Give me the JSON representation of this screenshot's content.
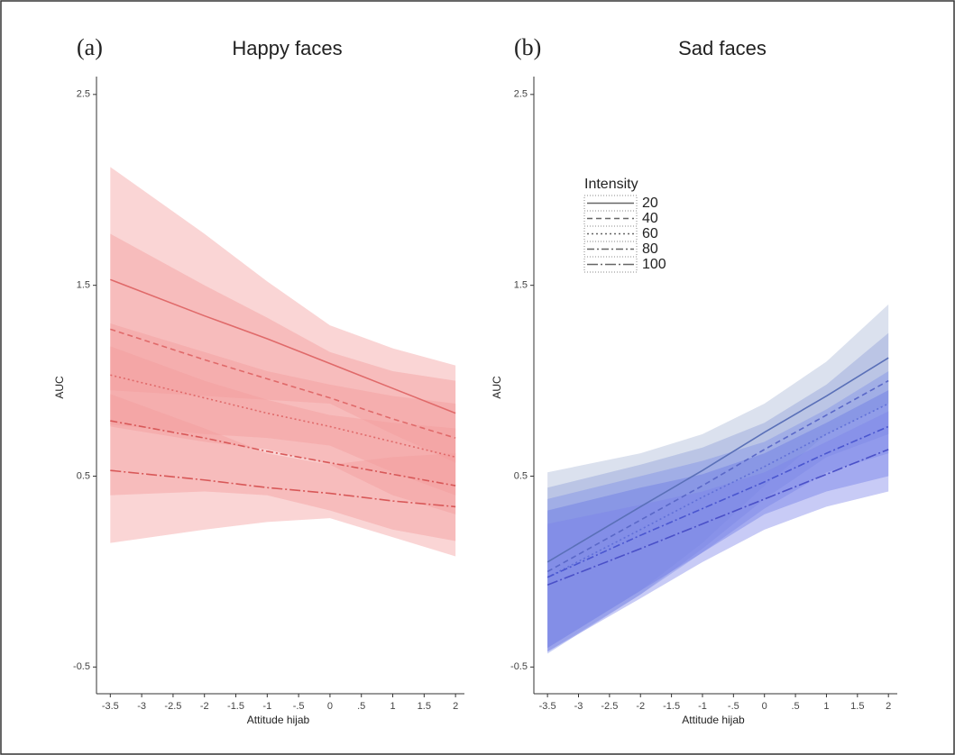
{
  "chart_data": [
    {
      "type": "line",
      "panel_label": "(a)",
      "title": "Happy faces",
      "x_label": "Attitude hijab",
      "y_label": "AUC",
      "x": [
        -3.5,
        -2,
        -1,
        0,
        1,
        2
      ],
      "xlim": [
        -3.72,
        2.07
      ],
      "ylim": [
        -0.64,
        2.57
      ],
      "xticks": [
        -3.5,
        -3,
        -2.5,
        -2,
        -1.5,
        -1,
        {
          "value": -0.5,
          "label": "-.5"
        },
        0,
        {
          "value": 0.5,
          "label": ".5"
        },
        1,
        1.5,
        2
      ],
      "yticks": [
        2.5,
        1.5,
        0.5,
        -0.5
      ],
      "series": [
        {
          "color": "#e06a6a",
          "band_color": "#f29a9a",
          "linestyle": "solid",
          "values": [
            1.53,
            1.34,
            1.22,
            1.09,
            0.96,
            0.83
          ],
          "upper": [
            2.12,
            1.77,
            1.52,
            1.29,
            1.17,
            1.08
          ],
          "lower": [
            0.95,
            0.92,
            0.9,
            0.88,
            0.72,
            0.57
          ]
        },
        {
          "color": "#e06a6a",
          "band_color": "#f29a9a",
          "linestyle": "dashed",
          "values": [
            1.27,
            1.11,
            1.01,
            0.91,
            0.8,
            0.7
          ],
          "upper": [
            1.77,
            1.5,
            1.33,
            1.15,
            1.05,
            1.0
          ],
          "lower": [
            0.77,
            0.72,
            0.7,
            0.66,
            0.52,
            0.4
          ]
        },
        {
          "color": "#e06a6a",
          "band_color": "#f29a9a",
          "linestyle": "dotted",
          "values": [
            1.03,
            0.91,
            0.83,
            0.76,
            0.68,
            0.6
          ],
          "upper": [
            1.3,
            1.15,
            1.05,
            0.98,
            0.92,
            0.88
          ],
          "lower": [
            0.76,
            0.68,
            0.64,
            0.56,
            0.4,
            0.3
          ]
        },
        {
          "color": "#d85858",
          "band_color": "#f29a9a",
          "linestyle": "dashdot",
          "values": [
            0.79,
            0.7,
            0.63,
            0.57,
            0.51,
            0.45
          ],
          "upper": [
            1.18,
            1.0,
            0.9,
            0.82,
            0.78,
            0.75
          ],
          "lower": [
            0.4,
            0.42,
            0.4,
            0.32,
            0.22,
            0.16
          ]
        },
        {
          "color": "#d85858",
          "band_color": "#f29a9a",
          "linestyle": "longdashdot",
          "values": [
            0.53,
            0.48,
            0.44,
            0.41,
            0.37,
            0.34
          ],
          "upper": [
            0.93,
            0.75,
            0.62,
            0.56,
            0.6,
            0.62
          ],
          "lower": [
            0.15,
            0.22,
            0.26,
            0.28,
            0.18,
            0.08
          ]
        }
      ]
    },
    {
      "type": "line",
      "panel_label": "(b)",
      "title": "Sad faces",
      "x_label": "Attitude hijab",
      "y_label": "AUC",
      "legend_title": "Intensity",
      "x": [
        -3.5,
        -2,
        -1,
        0,
        1,
        2
      ],
      "xlim": [
        -3.72,
        2.07
      ],
      "ylim": [
        -0.64,
        2.57
      ],
      "xticks": [
        -3.5,
        -3,
        -2.5,
        -2,
        -1.5,
        -1,
        {
          "value": -0.5,
          "label": "-.5"
        },
        0,
        {
          "value": 0.5,
          "label": ".5"
        },
        1,
        1.5,
        2
      ],
      "yticks": [
        2.5,
        1.5,
        0.5,
        -0.5
      ],
      "series": [
        {
          "name": "20",
          "color": "#5a70b8",
          "band_color": "#aab8d6",
          "linestyle": "solid",
          "values": [
            0.05,
            0.34,
            0.53,
            0.73,
            0.92,
            1.12
          ],
          "upper": [
            0.52,
            0.62,
            0.72,
            0.88,
            1.1,
            1.4
          ],
          "lower": [
            -0.4,
            -0.1,
            0.15,
            0.45,
            0.72,
            0.88
          ]
        },
        {
          "name": "40",
          "color": "#5a68c8",
          "band_color": "#8f9fd8",
          "linestyle": "dashed",
          "values": [
            0.0,
            0.27,
            0.45,
            0.64,
            0.82,
            1.0
          ],
          "upper": [
            0.44,
            0.56,
            0.65,
            0.78,
            0.98,
            1.25
          ],
          "lower": [
            -0.42,
            -0.12,
            0.12,
            0.38,
            0.6,
            0.72
          ]
        },
        {
          "name": "60",
          "color": "#6070d8",
          "band_color": "#7f8ee6",
          "linestyle": "dotted",
          "values": [
            -0.03,
            0.22,
            0.39,
            0.55,
            0.72,
            0.88
          ],
          "upper": [
            0.38,
            0.5,
            0.58,
            0.68,
            0.85,
            1.05
          ],
          "lower": [
            -0.43,
            -0.12,
            0.1,
            0.33,
            0.52,
            0.62
          ]
        },
        {
          "name": "80",
          "color": "#4a56d0",
          "band_color": "#6a78e4",
          "linestyle": "dashdot",
          "values": [
            -0.03,
            0.19,
            0.33,
            0.47,
            0.62,
            0.76
          ],
          "upper": [
            0.32,
            0.44,
            0.51,
            0.62,
            0.78,
            0.95
          ],
          "lower": [
            -0.4,
            -0.1,
            0.1,
            0.3,
            0.42,
            0.5
          ]
        },
        {
          "name": "100",
          "color": "#4a50c8",
          "band_color": "#7b84ea",
          "linestyle": "longdashdot",
          "values": [
            -0.07,
            0.12,
            0.25,
            0.38,
            0.51,
            0.64
          ],
          "upper": [
            0.25,
            0.35,
            0.42,
            0.52,
            0.68,
            0.84
          ],
          "lower": [
            -0.42,
            -0.14,
            0.05,
            0.22,
            0.34,
            0.42
          ]
        }
      ]
    }
  ]
}
